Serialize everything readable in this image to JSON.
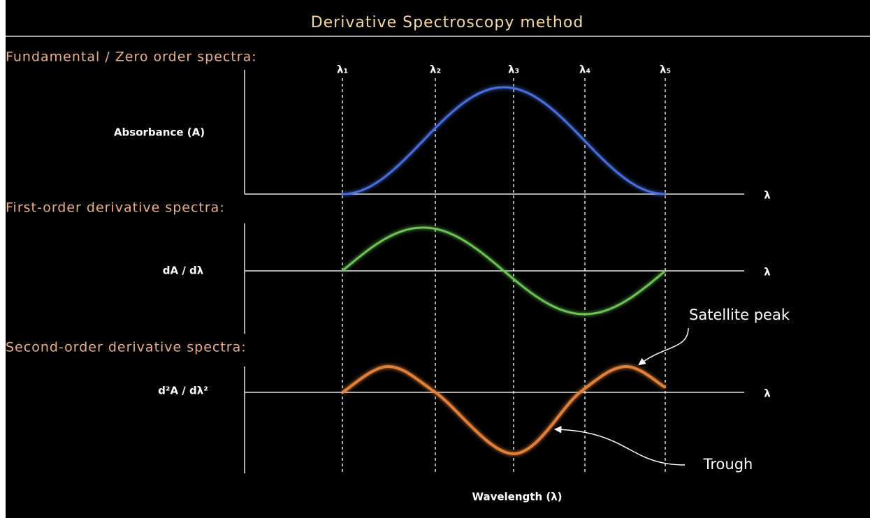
{
  "title": "Derivative Spectroscopy method",
  "sections": [
    {
      "heading": "Fundamental / Zero order spectra:",
      "y_label": "Absorbance (A)",
      "x_end": "λ"
    },
    {
      "heading": "First-order derivative spectra:",
      "y_label": "dA / dλ",
      "x_end": "λ"
    },
    {
      "heading": "Second-order derivative spectra:",
      "y_label": "d²A / dλ²",
      "x_end": "λ"
    }
  ],
  "wavelength_markers": [
    "λ₁",
    "λ₂",
    "λ₃",
    "λ₄",
    "λ₅"
  ],
  "annotations": {
    "satellite_peak": "Satellite peak",
    "trough": "Trough"
  },
  "x_label": "Wavelength (λ)"
}
